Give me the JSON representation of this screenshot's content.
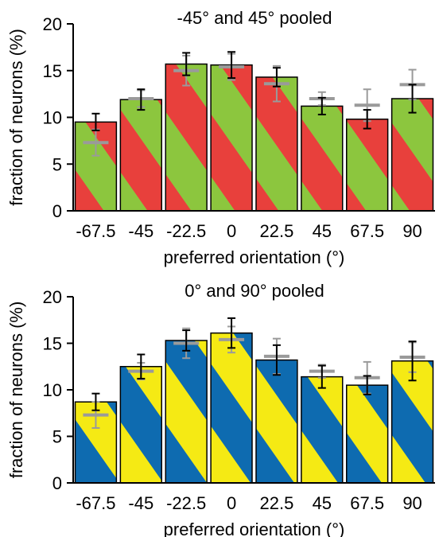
{
  "colors": {
    "red": "#e8403c",
    "green": "#8cc63e",
    "blue": "#0e6bb0",
    "yellow": "#f5ea14",
    "gray_marker": "#9a9a9a",
    "error_bar": "#000000"
  },
  "chart_data": [
    {
      "type": "bar",
      "title": "-45° and 45° pooled",
      "xlabel": "preferred orientation (°)",
      "ylabel": "fraction of neurons (%)",
      "categories": [
        "-67.5",
        "-45",
        "-22.5",
        "0",
        "22.5",
        "45",
        "67.5",
        "90"
      ],
      "ylim": [
        0,
        20
      ],
      "yticks": [
        "0",
        "5",
        "10",
        "15",
        "20"
      ],
      "series": [
        {
          "values": [
            9.5,
            11.9,
            15.7,
            15.6,
            14.3,
            11.2,
            9.8,
            12.0
          ],
          "error": [
            0.9,
            1.1,
            1.2,
            1.4,
            1.0,
            0.9,
            1.0,
            1.5
          ],
          "stripe_colors": [
            "red",
            "green"
          ]
        }
      ],
      "reference": {
        "values": [
          7.3,
          12.0,
          15.0,
          15.4,
          13.6,
          12.0,
          11.3,
          13.5
        ],
        "error": [
          1.4,
          0.9,
          1.6,
          1.4,
          1.9,
          0.7,
          1.7,
          1.6
        ]
      }
    },
    {
      "type": "bar",
      "title": "0° and 90° pooled",
      "xlabel": "preferred orientation (°)",
      "ylabel": "fraction of neurons (%)",
      "categories": [
        "-67.5",
        "-45",
        "-22.5",
        "0",
        "22.5",
        "45",
        "67.5",
        "90"
      ],
      "ylim": [
        0,
        20
      ],
      "yticks": [
        "0",
        "5",
        "10",
        "15",
        "20"
      ],
      "series": [
        {
          "values": [
            8.7,
            12.5,
            15.3,
            16.1,
            13.2,
            11.4,
            10.5,
            13.1
          ],
          "error": [
            0.9,
            1.3,
            1.1,
            1.6,
            1.6,
            1.2,
            1.0,
            2.1
          ],
          "stripe_colors": [
            "blue",
            "yellow"
          ]
        }
      ],
      "reference": {
        "values": [
          7.3,
          12.0,
          15.0,
          15.4,
          13.6,
          12.0,
          11.3,
          13.5
        ],
        "error": [
          1.4,
          0.9,
          1.6,
          1.4,
          1.9,
          0.7,
          1.7,
          1.6
        ]
      }
    }
  ]
}
